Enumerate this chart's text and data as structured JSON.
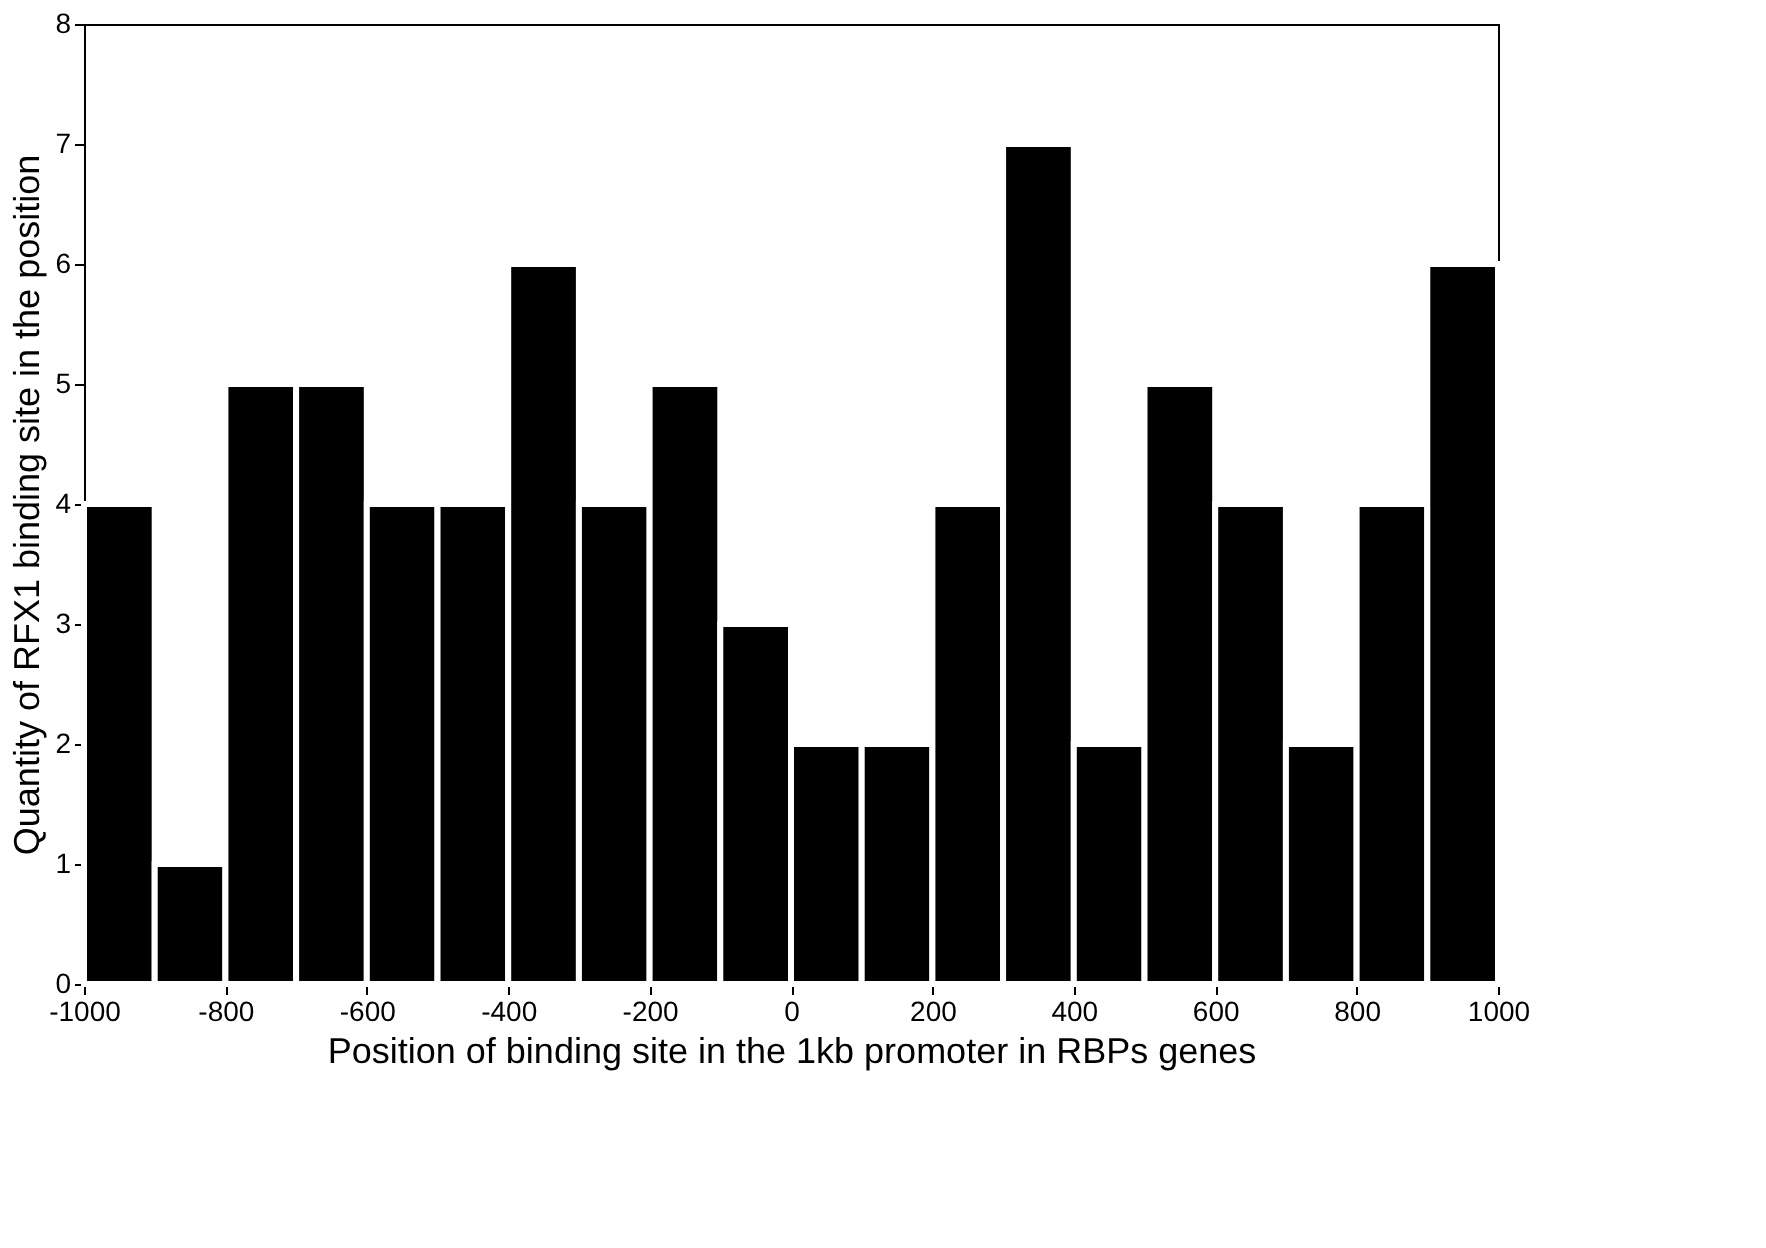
{
  "chart_data": {
    "type": "histogram",
    "xlabel": "Position of binding site in the 1kb promoter in RBPs genes",
    "ylabel": "Quantity of RFX1 binding site in the position",
    "bins": [
      -1000,
      -900,
      -800,
      -700,
      -600,
      -500,
      -400,
      -300,
      -200,
      -100,
      0,
      100,
      200,
      300,
      400,
      500,
      600,
      700,
      800,
      900,
      1000
    ],
    "values": [
      4,
      1,
      5,
      5,
      4,
      4,
      6,
      4,
      5,
      3,
      2,
      2,
      4,
      7,
      2,
      5,
      4,
      2,
      4,
      6
    ],
    "color": "#000000",
    "xlim": [
      -1000,
      1000
    ],
    "xticks": [
      -1000,
      -800,
      -600,
      -400,
      -200,
      0,
      200,
      400,
      600,
      800,
      1000
    ],
    "ylim": [
      0,
      8
    ],
    "yticks": [
      0,
      1,
      2,
      3,
      4,
      5,
      6,
      7,
      8
    ],
    "grid": false
  }
}
